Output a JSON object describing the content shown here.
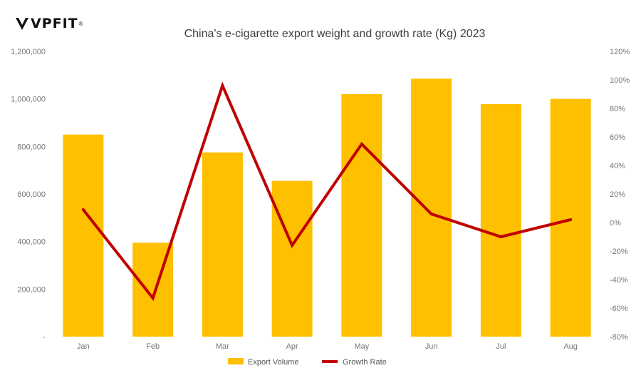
{
  "logo": {
    "text": "VPFIT",
    "reg": "®"
  },
  "chart_data": {
    "type": "bar+line",
    "title": "China's e-cigarette export weight and growth rate (Kg)  2023",
    "categories": [
      "Jan",
      "Feb",
      "Mar",
      "Apr",
      "May",
      "Jun",
      "Jul",
      "Aug"
    ],
    "series": [
      {
        "name": "Export Volume",
        "type": "bar",
        "axis": "left",
        "color": "#FFC000",
        "values": [
          850000,
          395000,
          775000,
          655000,
          1020000,
          1085000,
          978000,
          1000000
        ]
      },
      {
        "name": "Growth Rate",
        "type": "line",
        "axis": "right",
        "color": "#C00000",
        "values": [
          9,
          -53,
          96,
          -16,
          55,
          6,
          -10,
          2
        ]
      }
    ],
    "y_left": {
      "ylim": [
        0,
        1200000
      ],
      "ticks": [
        0,
        200000,
        400000,
        600000,
        800000,
        1000000,
        1200000
      ],
      "tick_labels": [
        "-",
        "200,000",
        "400,000",
        "600,000",
        "800,000",
        "1,000,000",
        "1,200,000"
      ]
    },
    "y_right": {
      "ylim": [
        -80,
        120
      ],
      "ticks": [
        -80,
        -60,
        -40,
        -20,
        0,
        20,
        40,
        60,
        80,
        100,
        120
      ],
      "tick_labels": [
        "-80%",
        "-60%",
        "-40%",
        "-20%",
        "0%",
        "20%",
        "40%",
        "60%",
        "80%",
        "100%",
        "120%"
      ]
    },
    "grid": false,
    "legend_position": "bottom-center"
  }
}
